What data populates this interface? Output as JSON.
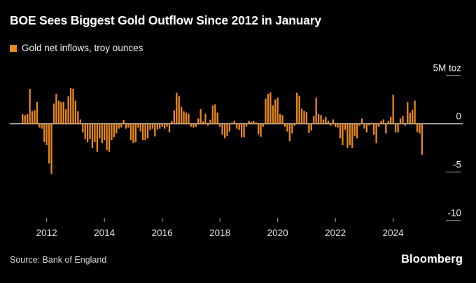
{
  "header": {
    "title": "BOE Sees Biggest Gold Outflow Since 2012 in January",
    "legend_label": "Gold net inflows, troy ounces"
  },
  "footer": {
    "source": "Source: Bank of England",
    "brand": "Bloomberg"
  },
  "colors": {
    "background": "#000000",
    "bar": "#E8891B",
    "zero_line": "#C2C2C2",
    "tick_line": "#8C8C8C",
    "axis_text": "#EDEDED",
    "year_text": "#E3E3E3"
  },
  "chart_data": {
    "type": "bar",
    "title": "BOE Sees Biggest Gold Outflow Since 2012 in January",
    "series_name": "Gold net inflows, troy ounces",
    "unit": "M toz",
    "start_month": "2011-03",
    "end_month": "2025-01",
    "ylim": [
      -10,
      5
    ],
    "grid": false,
    "legend_position": "top-left",
    "y_ticks": [
      {
        "value": 5,
        "label": "5M toz"
      },
      {
        "value": 0,
        "label": "0"
      },
      {
        "value": -5,
        "label": "-5"
      },
      {
        "value": -10,
        "label": "-10"
      }
    ],
    "x_ticks": [
      2012,
      2014,
      2016,
      2018,
      2020,
      2022,
      2024
    ],
    "values": [
      1.0,
      0.9,
      1.0,
      3.6,
      1.3,
      1.4,
      2.25,
      -0.4,
      -0.5,
      -1.9,
      -2.2,
      -4.1,
      -5.2,
      2.1,
      3.1,
      2.4,
      2.25,
      2.25,
      1.5,
      2.85,
      3.7,
      3.6,
      2.4,
      1.3,
      0.45,
      -0.9,
      -1.6,
      -1.9,
      -1.6,
      -2.5,
      -1.9,
      -2.9,
      -1.5,
      -2.0,
      -1.7,
      -2.7,
      -2.9,
      -1.7,
      -1.4,
      -1.0,
      -0.5,
      -0.4,
      0.4,
      -0.5,
      -0.4,
      -1.7,
      -2.0,
      -1.9,
      -0.4,
      -0.8,
      -1.7,
      -1.7,
      -1.5,
      -0.65,
      -0.5,
      -1.3,
      -0.6,
      -0.5,
      -0.3,
      -0.5,
      -0.3,
      -0.9,
      0.3,
      1.4,
      3.2,
      2.85,
      1.76,
      1.28,
      1.16,
      1.04,
      -0.3,
      -0.4,
      -0.3,
      0.55,
      1.5,
      0.24,
      1.04,
      -0.2,
      0.43,
      1.9,
      2.0,
      1.16,
      -0.3,
      -1.14,
      -1.5,
      -1.26,
      -0.8,
      0.14,
      0.3,
      -0.5,
      -0.65,
      -1.4,
      -1.4,
      -0.3,
      0.3,
      0.2,
      0.3,
      0.14,
      -1.1,
      -1.35,
      -0.3,
      2.6,
      3.1,
      3.25,
      1.9,
      2.5,
      2.7,
      1.0,
      0.9,
      -0.3,
      -0.8,
      -1.8,
      -1.0,
      -0.2,
      3.2,
      2.9,
      1.55,
      1.35,
      1.2,
      -0.95,
      -0.7,
      0.8,
      2.7,
      1.0,
      0.9,
      0.45,
      0.7,
      0.3,
      -0.2,
      0.45,
      -0.3,
      -0.4,
      -1.5,
      -2.2,
      -0.65,
      -2.5,
      -2.2,
      -2.5,
      -1.26,
      -1.5,
      -0.2,
      0.55,
      -0.5,
      -0.9,
      -0.17,
      0.1,
      -1.14,
      -2.0,
      -0.3,
      0.3,
      0.45,
      -1.0,
      0.3,
      0.7,
      3.0,
      -0.9,
      -0.9,
      0.55,
      0.8,
      -0.2,
      2.25,
      1.16,
      1.45,
      2.4,
      -0.85,
      -1.0,
      -3.2
    ]
  }
}
